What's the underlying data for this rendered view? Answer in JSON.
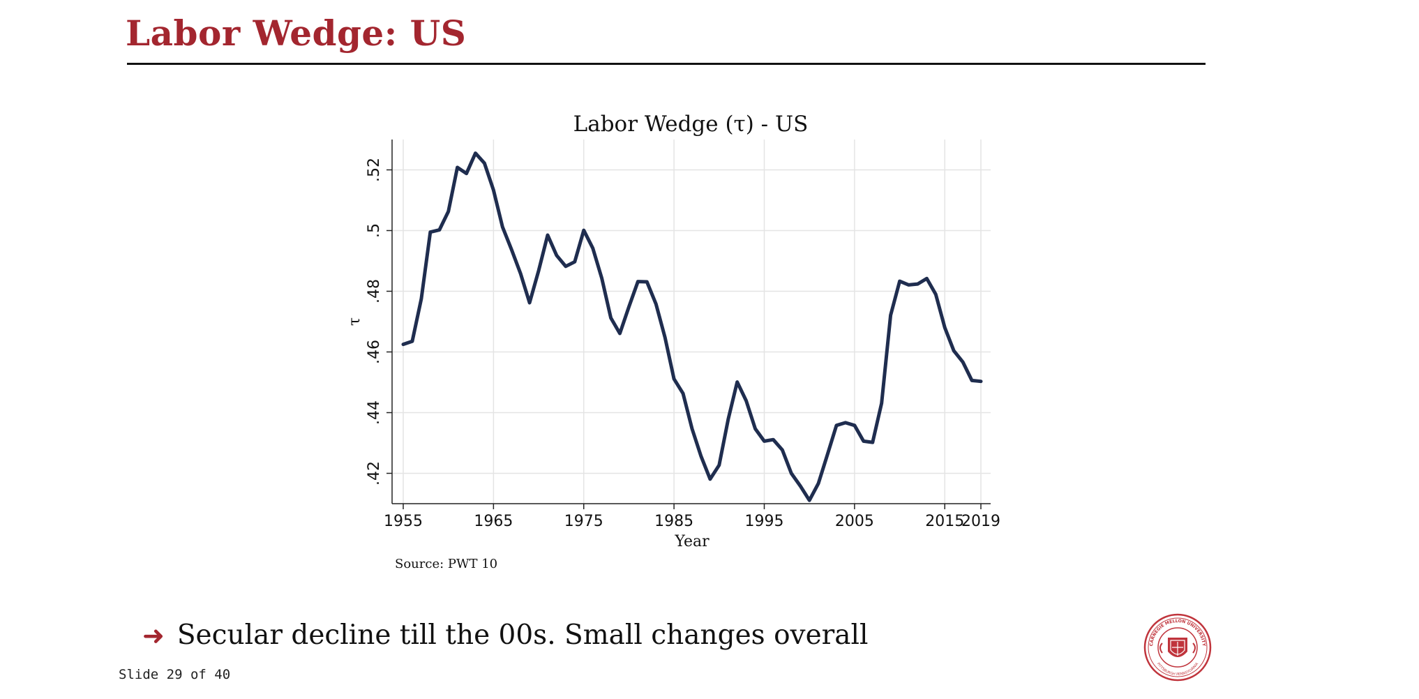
{
  "slide": {
    "title": "Labor Wedge: US",
    "bullet_text": "Secular decline till the 00s. Small changes overall",
    "slide_number": "Slide 29 of 40",
    "source": "Source: PWT 10",
    "accent_color": "#a3262f",
    "logo_text_top": "CARNEGIE MELLON UNIVERSITY",
    "logo_text_bottom": "PITTSBURGH PENNSYLVANIA"
  },
  "chart_data": {
    "type": "line",
    "title": "Labor Wedge (τ) - US",
    "xlabel": "Year",
    "ylabel": "τ",
    "xlim": [
      1955,
      2019
    ],
    "ylim": [
      0.41,
      0.53
    ],
    "x_ticks": [
      1955,
      1965,
      1975,
      1985,
      1995,
      2005,
      2015,
      2019
    ],
    "y_ticks": [
      0.42,
      0.44,
      0.46,
      0.48,
      0.5,
      0.52
    ],
    "y_tick_labels": [
      ".42",
      ".44",
      ".46",
      ".48",
      ".5",
      ".52"
    ],
    "grid": true,
    "line_color": "#1f2d4f",
    "series": [
      {
        "x": [
          1955,
          1956,
          1957,
          1958,
          1959,
          1960,
          1961,
          1962,
          1963,
          1964,
          1965,
          1966,
          1967,
          1968,
          1969,
          1970,
          1971,
          1972,
          1973,
          1974,
          1975,
          1976,
          1977,
          1978,
          1979,
          1980,
          1981,
          1982,
          1983,
          1984,
          1985,
          1986,
          1987,
          1988,
          1989,
          1990,
          1991,
          1992,
          1993,
          1994,
          1995,
          1996,
          1997,
          1998,
          1999,
          2000,
          2001,
          2002,
          2003,
          2004,
          2005,
          2006,
          2007,
          2008,
          2009,
          2010,
          2011,
          2012,
          2013,
          2014,
          2015,
          2016,
          2017,
          2018,
          2019
        ],
        "y": [
          0.4625,
          0.4635,
          0.4775,
          0.4995,
          0.5002,
          0.5063,
          0.5208,
          0.5188,
          0.5255,
          0.5222,
          0.5133,
          0.5012,
          0.4937,
          0.4858,
          0.4762,
          0.4868,
          0.4985,
          0.4918,
          0.4882,
          0.4897,
          0.5001,
          0.4942,
          0.4843,
          0.4712,
          0.4661,
          0.4748,
          0.4832,
          0.4831,
          0.4758,
          0.4648,
          0.4511,
          0.4463,
          0.4347,
          0.4256,
          0.4181,
          0.4227,
          0.4378,
          0.4501,
          0.4439,
          0.4347,
          0.4306,
          0.4311,
          0.4277,
          0.42,
          0.4158,
          0.4111,
          0.4167,
          0.4262,
          0.4358,
          0.4367,
          0.4358,
          0.4306,
          0.4302,
          0.4431,
          0.4721,
          0.4833,
          0.4821,
          0.4824,
          0.4842,
          0.479,
          0.468,
          0.4604,
          0.4567,
          0.4506,
          0.4503
        ]
      }
    ]
  }
}
